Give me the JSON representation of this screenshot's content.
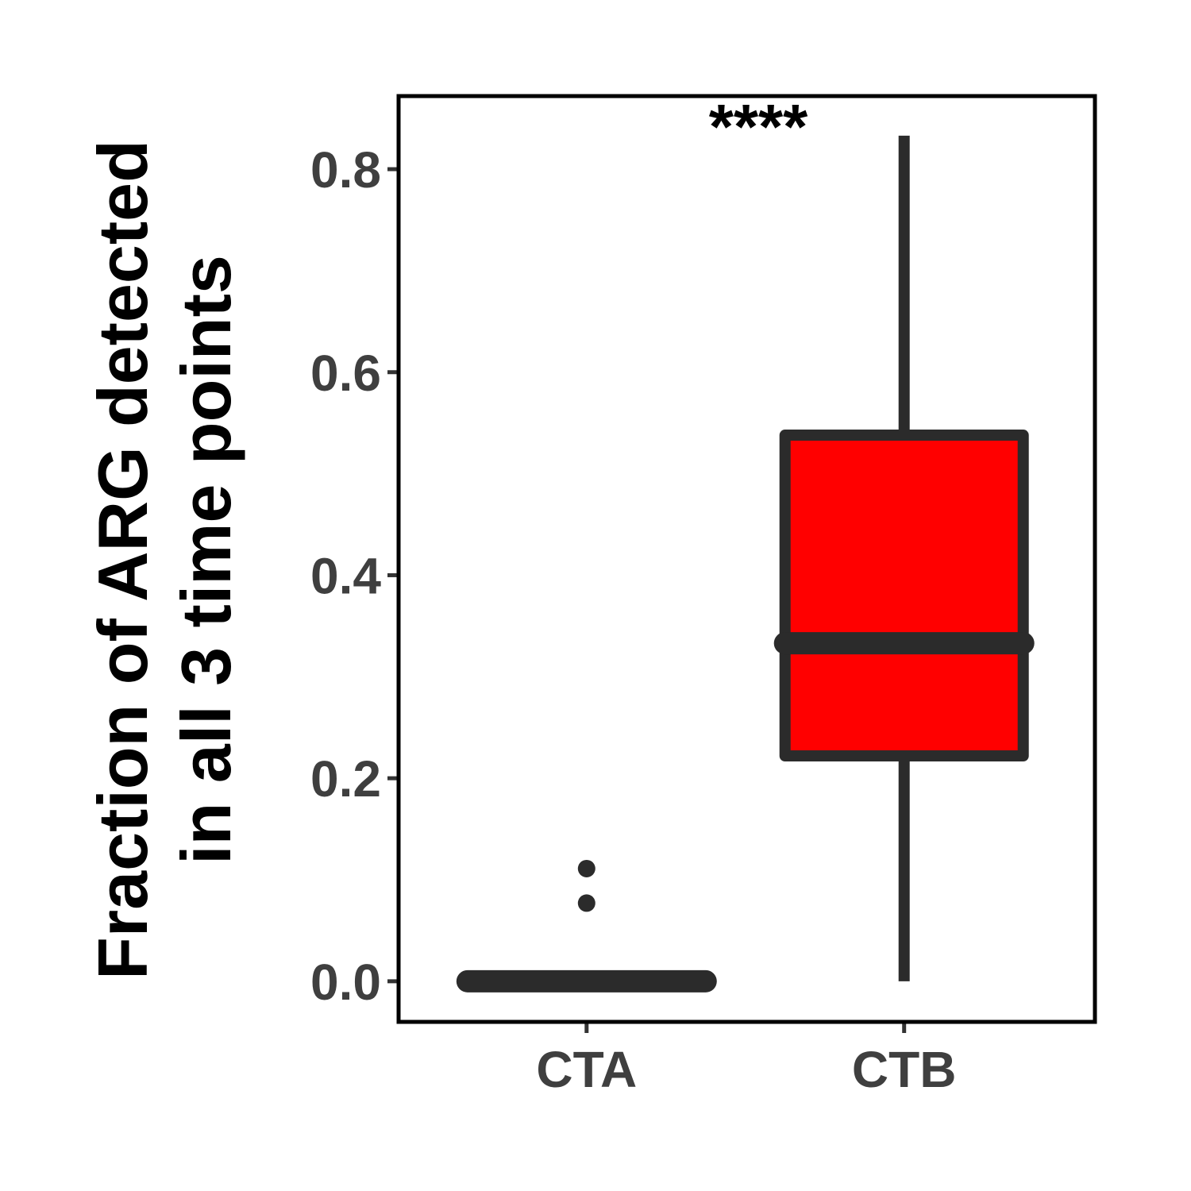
{
  "chart_data": {
    "type": "box",
    "title": "",
    "xlabel": "",
    "ylabel_lines": [
      "Fraction of ARG detected",
      "in all 3 time points"
    ],
    "ylim": [
      -0.04,
      0.872
    ],
    "yticks": [
      0.0,
      0.2,
      0.4,
      0.6,
      0.8
    ],
    "ytick_labels": [
      "0.0",
      "0.2",
      "0.4",
      "0.6",
      "0.8"
    ],
    "categories": [
      "CTA",
      "CTB"
    ],
    "boxes": [
      {
        "category": "CTA",
        "min": 0.0,
        "q1": 0.0,
        "median": 0.0,
        "q3": 0.0,
        "max": 0.0,
        "outliers": [
          0.111,
          0.077
        ],
        "fill": "#ffffff"
      },
      {
        "category": "CTB",
        "min": 0.0,
        "q1": 0.222,
        "median": 0.333,
        "q3": 0.538,
        "max": 0.833,
        "outliers": [],
        "fill": "#ff0000"
      }
    ],
    "annotation": "****",
    "grid": false,
    "legend": "none",
    "colors": {
      "box_line": "#2b2b2b",
      "ctb_fill": "#ff0000",
      "text": "#3f3f3f",
      "frame": "#000000"
    }
  }
}
